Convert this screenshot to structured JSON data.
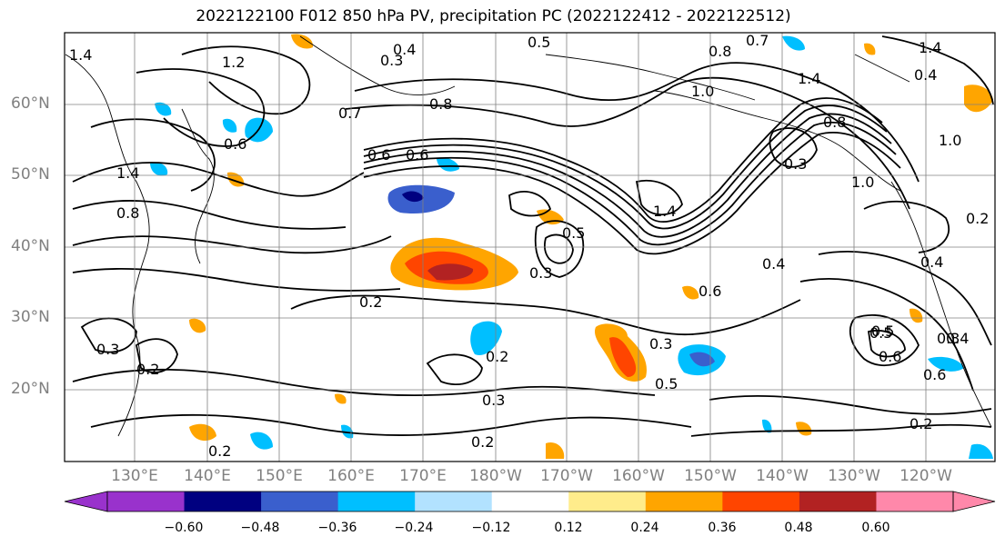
{
  "title": "2022122100 F012 850 hPa PV, precipitation PC (2022122412 - 2022122512)",
  "lat_labels": [
    "60°N",
    "50°N",
    "40°N",
    "30°N",
    "20°N"
  ],
  "lon_labels": [
    "130°E",
    "140°E",
    "150°E",
    "160°E",
    "170°E",
    "180°W",
    "170°W",
    "160°W",
    "150°W",
    "140°W",
    "130°W",
    "120°W"
  ],
  "colorbar": {
    "colors": [
      "#9932cc",
      "#000080",
      "#3a5fcd",
      "#00bfff",
      "#b2e2ff",
      "#ffffff",
      "#ffec8b",
      "#ffa500",
      "#ff4500",
      "#b22222",
      "#ff88aa"
    ],
    "tick_labels": [
      "−0.60",
      "−0.48",
      "−0.36",
      "−0.24",
      "−0.12",
      "0.12",
      "0.24",
      "0.36",
      "0.48",
      "0.60"
    ]
  },
  "contour_labels": [
    "1.4",
    "1.2",
    "0.3",
    "0.8",
    "0.7",
    "0.6",
    "0.8",
    "0.7",
    "1.4",
    "1.0",
    "1.4",
    "1.0",
    "0.8",
    "1.4",
    "0.8",
    "0.6",
    "0.6",
    "0.5",
    "0.4",
    "1.4",
    "0.5",
    "0.3",
    "1.0",
    "0.3",
    "0.4",
    "0.2",
    "0.6",
    "0.4",
    "0.5",
    "0.6",
    "0.3",
    "0.5",
    "0.2",
    "0.3",
    "0.6",
    "0.2",
    "0.2",
    "0.2",
    "0.2",
    "0.3",
    "0.2",
    "0.3",
    "0.5",
    "0.4",
    "0.4"
  ]
}
